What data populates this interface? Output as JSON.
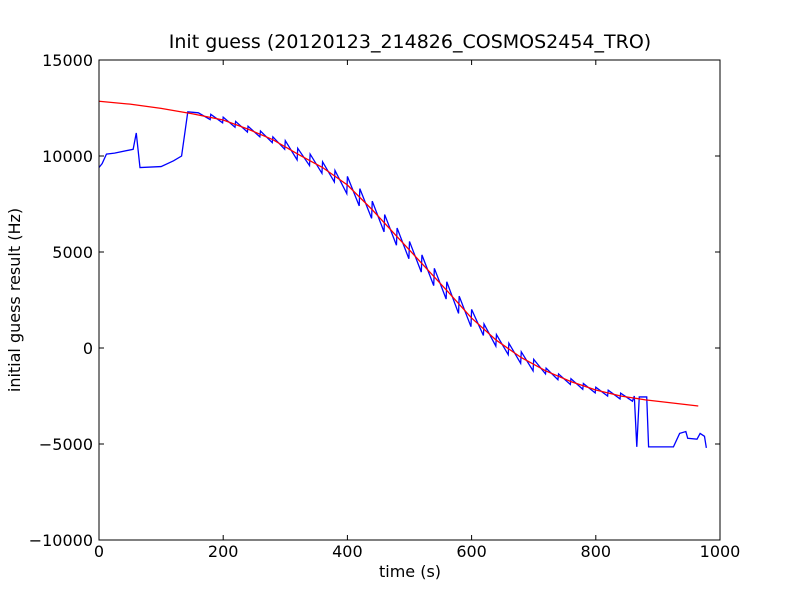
{
  "chart_data": {
    "type": "line",
    "title": "Init guess (20120123_214826_COSMOS2454_TRO)",
    "x_label": "time (s)",
    "y_label": "initial guess result (Hz)",
    "xlim": [
      0,
      1000
    ],
    "xticks": [
      0,
      200,
      400,
      600,
      800,
      1000
    ],
    "ylim": [
      -10000,
      15000
    ],
    "yticks": [
      {
        "value": -10000,
        "label": "−10000"
      },
      {
        "value": -5000,
        "label": "−5000"
      },
      0,
      5000,
      10000,
      15000
    ],
    "grid": false,
    "series": [
      {
        "color": "#0000ff",
        "x": [
          0,
          5,
          12,
          25,
          55,
          60,
          66,
          100,
          120,
          133,
          143,
          160,
          179,
          180,
          199,
          200,
          219,
          220,
          239,
          240,
          259,
          260,
          279,
          280,
          299,
          300,
          319,
          320,
          339,
          340,
          359,
          360,
          379,
          380,
          399,
          400,
          419,
          420,
          439,
          440,
          459,
          460,
          479,
          480,
          499,
          500,
          519,
          520,
          539,
          540,
          559,
          560,
          579,
          580,
          599,
          600,
          619,
          620,
          639,
          640,
          659,
          660,
          679,
          680,
          699,
          700,
          719,
          720,
          739,
          740,
          759,
          760,
          779,
          780,
          799,
          800,
          819,
          820,
          839,
          840,
          859,
          862,
          866,
          870,
          882,
          885,
          925,
          935,
          945,
          948,
          963,
          968,
          975,
          978
        ],
        "values": [
          9400,
          9600,
          10100,
          10150,
          10350,
          11200,
          9400,
          9450,
          9750,
          10000,
          12300,
          12250,
          11900,
          12170,
          11730,
          12025,
          11500,
          11800,
          11250,
          11550,
          11000,
          11300,
          10700,
          11000,
          10350,
          10800,
          9800,
          10400,
          9500,
          10100,
          9100,
          9700,
          8650,
          9250,
          8040,
          8940,
          7400,
          8300,
          6750,
          7650,
          6050,
          6950,
          5350,
          6250,
          4650,
          5550,
          3950,
          4850,
          3250,
          4150,
          2550,
          3450,
          1800,
          2700,
          1110,
          2010,
          650,
          1250,
          100,
          700,
          -350,
          250,
          -800,
          -200,
          -1190,
          -590,
          -1350,
          -1050,
          -1650,
          -1350,
          -1900,
          -1600,
          -2150,
          -1850,
          -2340,
          -2040,
          -2500,
          -2200,
          -2650,
          -2350,
          -2770,
          -2500,
          -5150,
          -2550,
          -2550,
          -5150,
          -5150,
          -4450,
          -4350,
          -4700,
          -4750,
          -4450,
          -4600,
          -5200
        ]
      },
      {
        "color": "#ff0000",
        "x": [
          0,
          50,
          100,
          150,
          200,
          240,
          280,
          320,
          360,
          400,
          440,
          480,
          520,
          560,
          600,
          640,
          680,
          720,
          760,
          800,
          840,
          880,
          920,
          965
        ],
        "values": [
          12850,
          12700,
          12480,
          12200,
          11875,
          11400,
          10850,
          10100,
          9400,
          8490,
          7200,
          5800,
          4400,
          3000,
          1560,
          400,
          -500,
          -1200,
          -1750,
          -2190,
          -2500,
          -2700,
          -2850,
          -3020
        ]
      }
    ]
  }
}
